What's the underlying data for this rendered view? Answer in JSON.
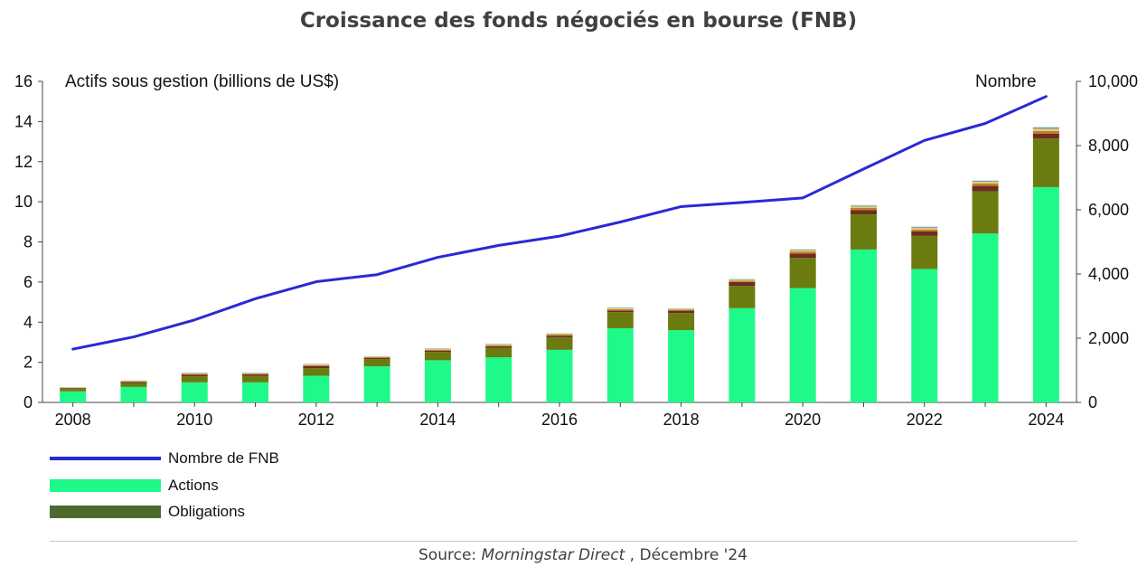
{
  "chart_title": "Croissance des fonds négociés en bourse (FNB)",
  "chart_data": {
    "type": "bar",
    "title": "Croissance des fonds négociés en bourse (FNB)",
    "xlabel": "",
    "ylabel_left": "Actifs sous gestion (billions de US$)",
    "ylabel_right": "Nombre",
    "ylim_left": [
      0,
      16
    ],
    "ylim_right": [
      0,
      10000
    ],
    "yticks_left": [
      "0",
      "2",
      "4",
      "6",
      "8",
      "10",
      "12",
      "14",
      "16"
    ],
    "yticks_right": [
      "0",
      "2,000",
      "4,000",
      "6,000",
      "8,000",
      "10,000"
    ],
    "xtick_labels": [
      "2008",
      "2010",
      "2012",
      "2014",
      "2016",
      "2018",
      "2020",
      "2022",
      "2024"
    ],
    "categories": [
      "2008",
      "2009",
      "2010",
      "2011",
      "2012",
      "2013",
      "2014",
      "2015",
      "2016",
      "2017",
      "2018",
      "2019",
      "2020",
      "2021",
      "2022",
      "2023",
      "2024"
    ],
    "stacked": true,
    "grid": false,
    "legend_position": "bottom-left",
    "series": [
      {
        "name": "Actions",
        "axis": "left",
        "color": "#1ff98a",
        "values": [
          0.55,
          0.77,
          1.0,
          1.0,
          1.33,
          1.8,
          2.1,
          2.25,
          2.62,
          3.7,
          3.6,
          4.7,
          5.7,
          7.62,
          6.65,
          8.42,
          10.73
        ]
      },
      {
        "name": "Obligations",
        "axis": "left",
        "color": "#6b7b0f",
        "values": [
          0.12,
          0.2,
          0.3,
          0.32,
          0.38,
          0.36,
          0.42,
          0.48,
          0.62,
          0.8,
          0.85,
          1.1,
          1.5,
          1.75,
          1.65,
          2.1,
          2.42
        ]
      },
      {
        "name": "",
        "axis": "left",
        "color": "#6a2f1d",
        "values": [
          0.03,
          0.05,
          0.08,
          0.08,
          0.1,
          0.06,
          0.06,
          0.07,
          0.08,
          0.08,
          0.12,
          0.2,
          0.22,
          0.22,
          0.22,
          0.27,
          0.25
        ]
      },
      {
        "name": "",
        "axis": "left",
        "color": "#c57a2e",
        "values": [
          0.02,
          0.03,
          0.04,
          0.03,
          0.04,
          0.04,
          0.05,
          0.05,
          0.06,
          0.06,
          0.05,
          0.06,
          0.1,
          0.1,
          0.1,
          0.12,
          0.13
        ]
      },
      {
        "name": "",
        "axis": "left",
        "color": "#f2cf57",
        "values": [
          0.03,
          0.03,
          0.03,
          0.03,
          0.04,
          0.03,
          0.04,
          0.04,
          0.04,
          0.05,
          0.04,
          0.05,
          0.06,
          0.07,
          0.07,
          0.08,
          0.1
        ]
      },
      {
        "name": "",
        "axis": "left",
        "color": "#6b9bd2",
        "values": [
          0.01,
          0.01,
          0.02,
          0.01,
          0.02,
          0.01,
          0.02,
          0.02,
          0.02,
          0.03,
          0.02,
          0.03,
          0.04,
          0.05,
          0.05,
          0.05,
          0.07
        ]
      },
      {
        "name": "",
        "axis": "left",
        "color": "#c9e8d4",
        "values": [
          0.01,
          0.01,
          0.02,
          0.02,
          0.02,
          0.01,
          0.02,
          0.02,
          0.02,
          0.03,
          0.02,
          0.03,
          0.03,
          0.04,
          0.04,
          0.04,
          0.05
        ]
      },
      {
        "name": "Nombre de FNB",
        "type": "line",
        "axis": "right",
        "color": "#2929d6",
        "values": [
          1660,
          2040,
          2570,
          3230,
          3760,
          3980,
          4520,
          4890,
          5180,
          5620,
          6100,
          6230,
          6370,
          7270,
          8160,
          8690,
          9530
        ]
      }
    ]
  },
  "legend": {
    "items": [
      {
        "label": "Nombre de FNB",
        "color": "#2929d6",
        "style": "line"
      },
      {
        "label": "Actions",
        "color": "#1ff98a",
        "style": "bar"
      },
      {
        "label": "Obligations",
        "color": "#4e6a2e",
        "style": "bar"
      }
    ]
  },
  "source": {
    "prefix": "Source: ",
    "publication": "Morningstar Direct",
    "suffix": " , Décembre '24"
  }
}
